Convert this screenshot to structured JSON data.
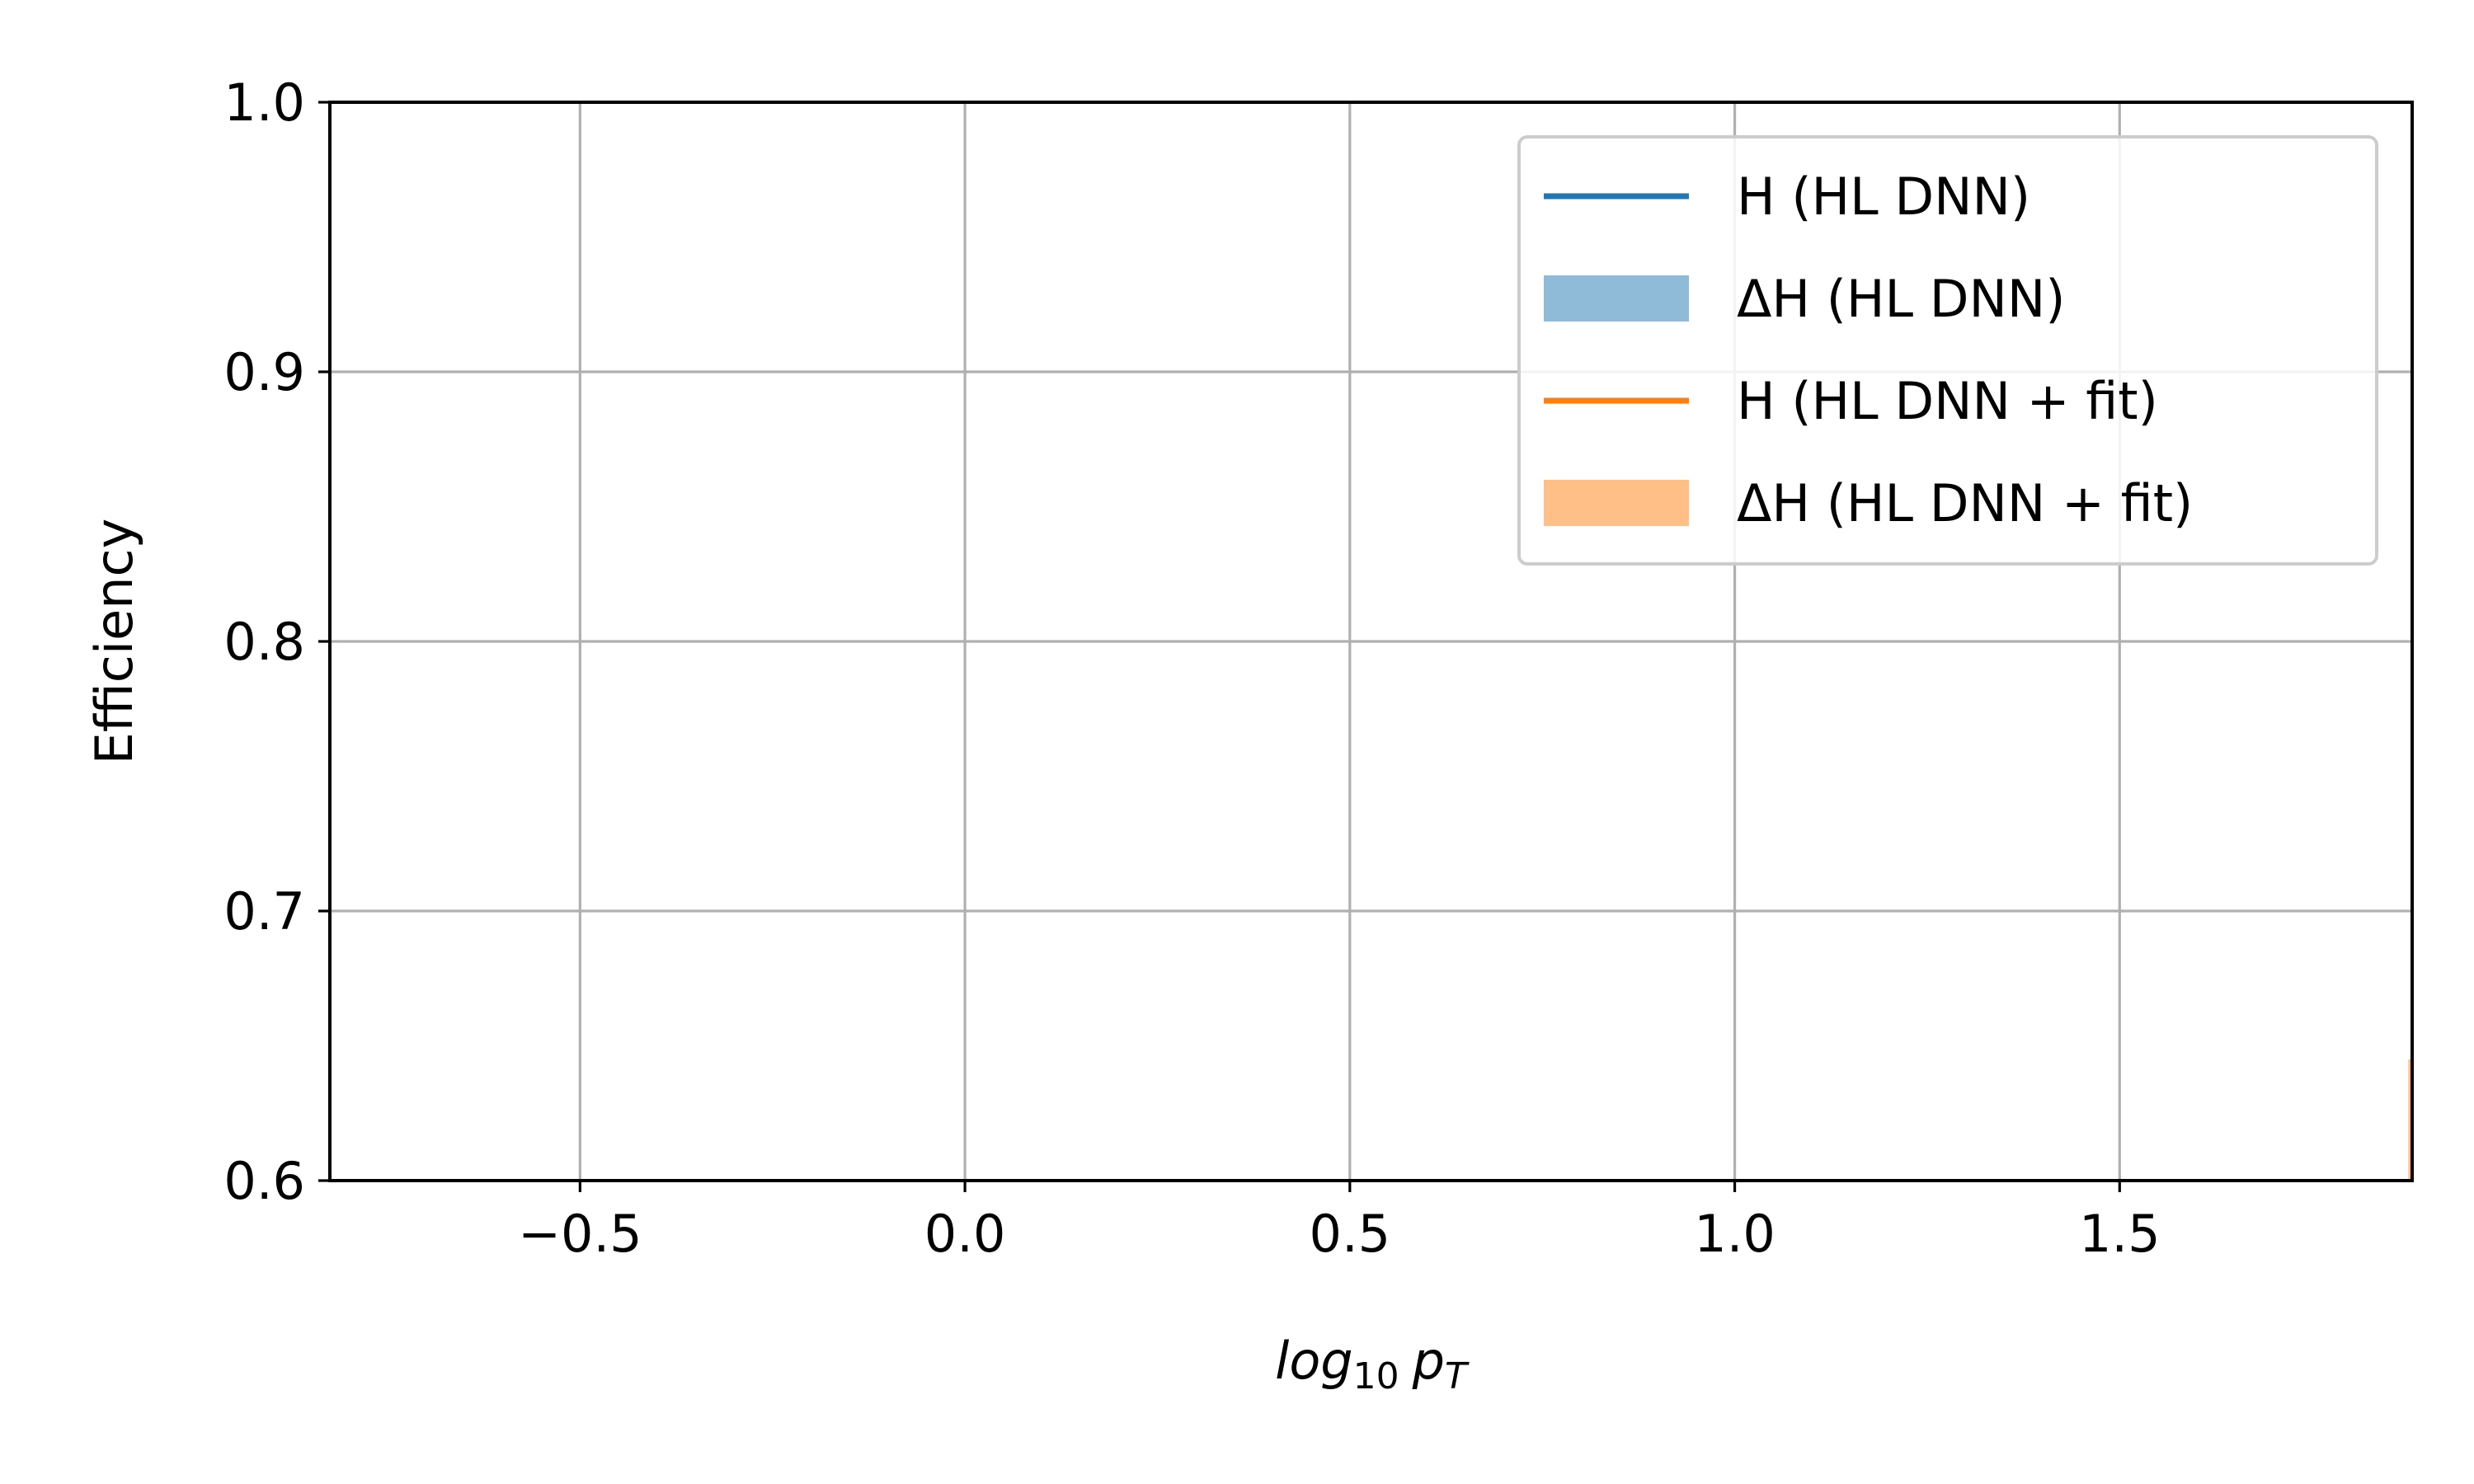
{
  "chart_data": {
    "type": "line",
    "title": "",
    "xlabel_parts": {
      "main": "log",
      "sub": "10",
      "var": "p",
      "var_sub": "T"
    },
    "ylabel": "Efficiency",
    "xlim": [
      -0.825,
      1.88
    ],
    "ylim": [
      0.6,
      1.0
    ],
    "x_ticks": [
      -0.5,
      0.0,
      0.5,
      1.0,
      1.5
    ],
    "x_tick_labels": [
      "−0.5",
      "0.0",
      "0.5",
      "1.0",
      "1.5"
    ],
    "y_ticks": [
      0.6,
      0.7,
      0.8,
      0.9,
      1.0
    ],
    "y_tick_labels": [
      "0.6",
      "0.7",
      "0.8",
      "0.9",
      "1.0"
    ],
    "grid": true,
    "legend_position": "top-right",
    "series": [
      {
        "name": "H (HL DNN)",
        "kind": "line",
        "color": "#1f77b4",
        "x": [],
        "y": []
      },
      {
        "name": "ΔH (HL DNN)",
        "kind": "band",
        "color": "#8fbbd9",
        "x": [],
        "y_low": [],
        "y_high": []
      },
      {
        "name": "H (HL DNN + fit)",
        "kind": "line",
        "color": "#ff7f0e",
        "x": [],
        "y": []
      },
      {
        "name": "ΔH (HL DNN + fit)",
        "kind": "band",
        "color": "#ffbf86",
        "x": [
          1.875,
          1.88
        ],
        "y_low": [
          0.6,
          0.6
        ],
        "y_high": [
          0.645,
          0.645
        ]
      }
    ]
  }
}
